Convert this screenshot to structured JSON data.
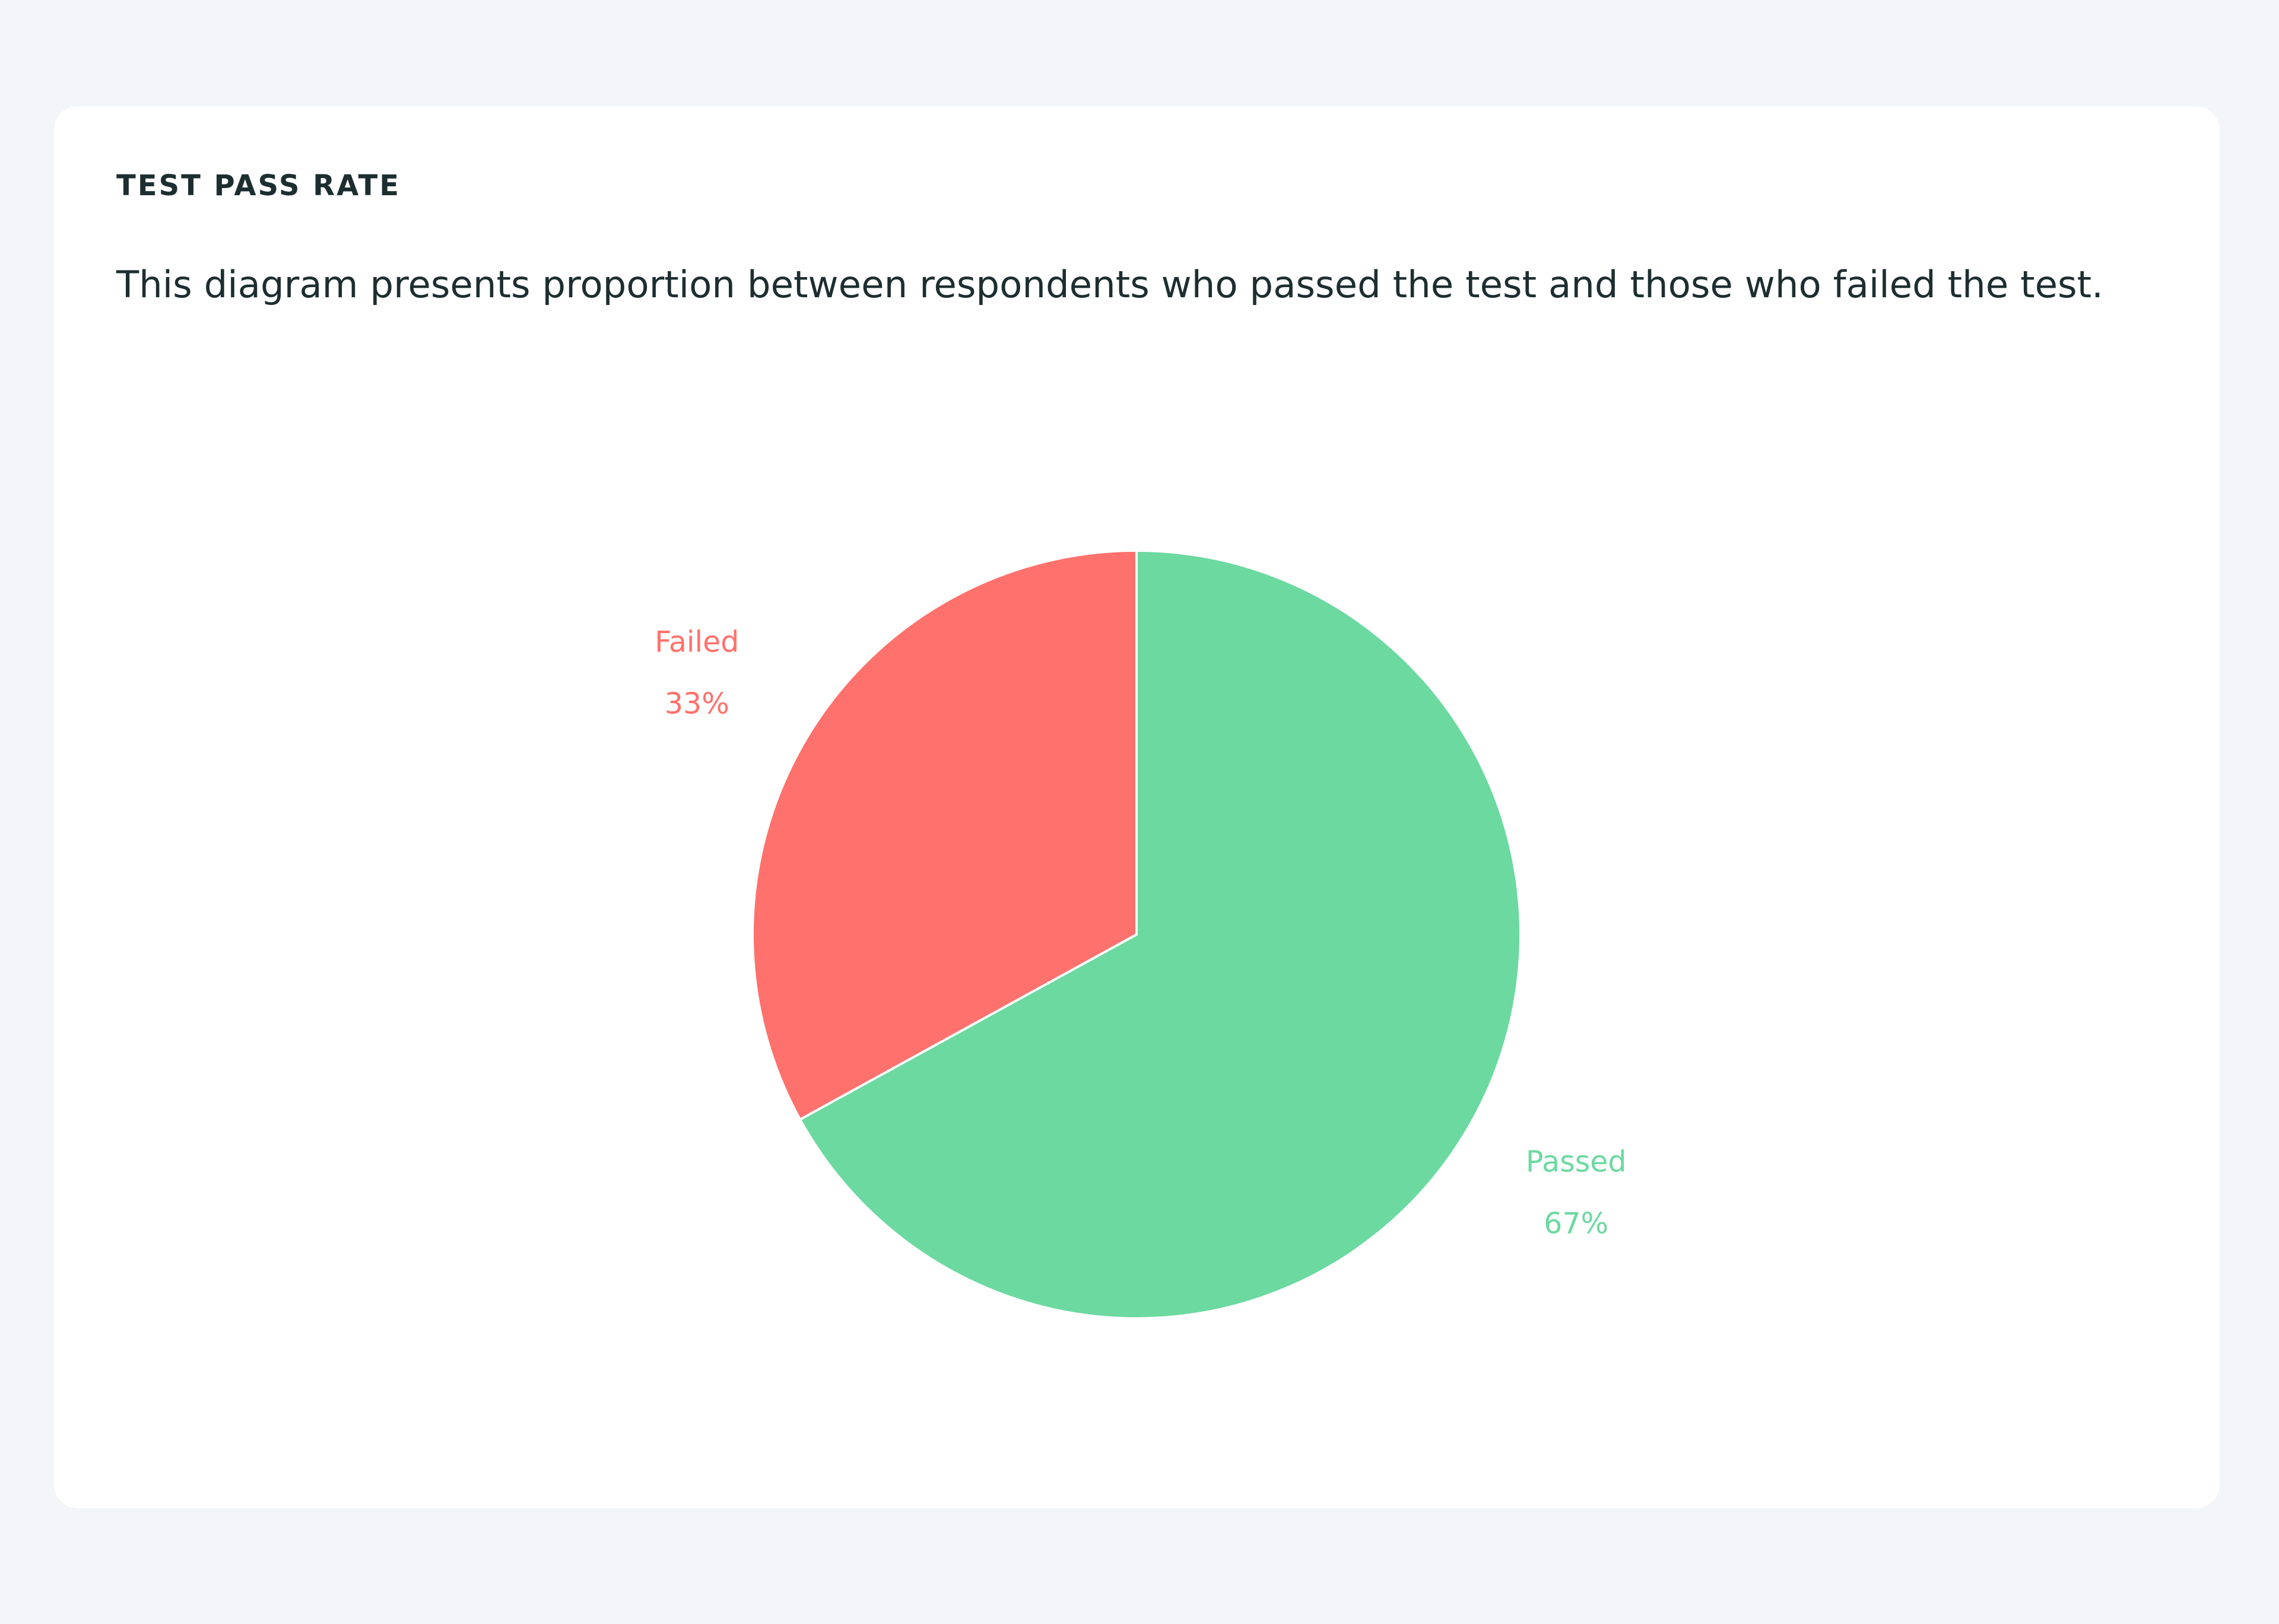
{
  "chart_data": {
    "type": "pie",
    "title": "TEST PASS RATE",
    "subtitle": "This diagram presents proportion between respondents who passed the test and those who failed the test.",
    "categories": [
      "Passed",
      "Failed"
    ],
    "values": [
      67,
      33
    ],
    "value_labels": [
      "67%",
      "33%"
    ],
    "colors": [
      "#6cd9a0",
      "#ff716c"
    ]
  }
}
